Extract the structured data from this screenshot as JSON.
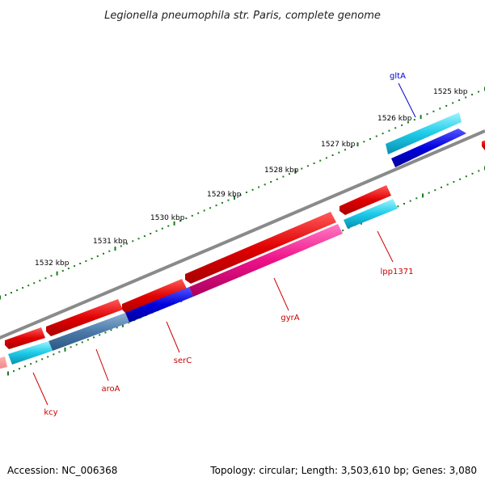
{
  "title": "Legionella pneumophila str. Paris, complete genome",
  "footer": {
    "accession": "Accession: NC_006368",
    "topology": "Topology: circular; Length: 3,503,610 bp; Genes: 3,080"
  },
  "kbp_labels": [
    "1525 kbp",
    "1526 kbp",
    "1527 kbp",
    "1528 kbp",
    "1529 kbp",
    "1530 kbp",
    "1531 kbp",
    "1532 kbp"
  ],
  "gene_labels": [
    {
      "name": "gltA",
      "color": "#0000cc"
    },
    {
      "name": "lpp1371",
      "color": "#cc0000"
    },
    {
      "name": "gyrA",
      "color": "#cc0000"
    },
    {
      "name": "serC",
      "color": "#cc0000"
    },
    {
      "name": "aroA",
      "color": "#cc0000"
    },
    {
      "name": "kcy",
      "color": "#cc0000"
    }
  ],
  "colors": {
    "backbone": "#808080",
    "tick": "#1a7a1a",
    "gene_red": "#ee1111",
    "gene_cyan": "#22ccee",
    "gene_blue": "#1111dd",
    "gene_pink": "#ee1188",
    "gene_steel": "#4a7aaa"
  }
}
